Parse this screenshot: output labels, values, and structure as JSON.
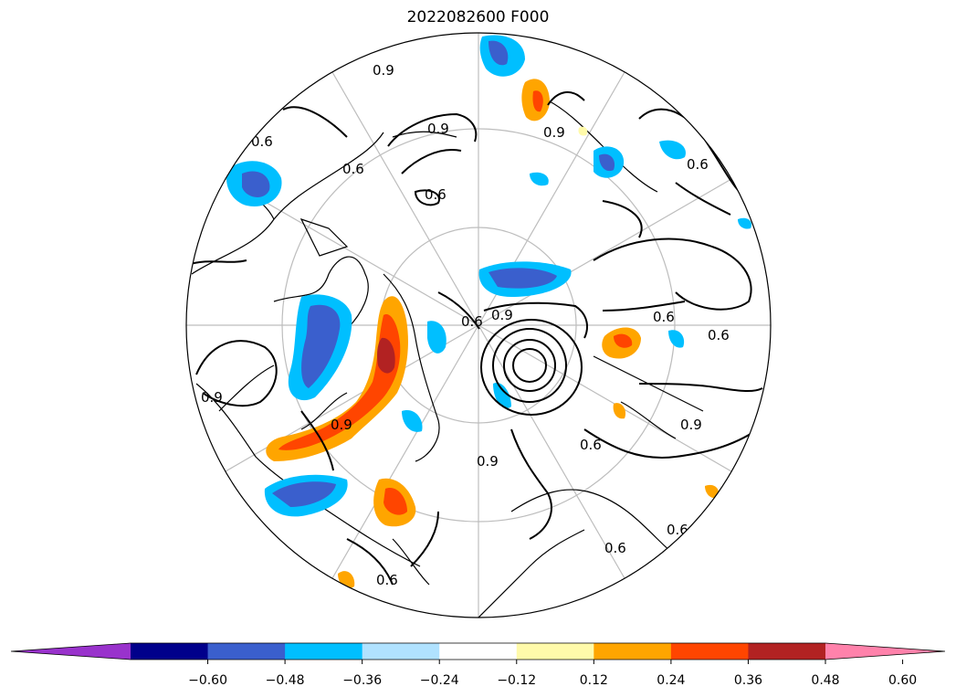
{
  "title": "2022082600 F000",
  "map": {
    "projection": "north-polar-stereographic",
    "contour_labels": [
      "0.9",
      "0.9",
      "0.6",
      "0.6",
      "0.6",
      "0.6",
      "0.9",
      "0.9",
      "0.6",
      "0.9",
      "0.6",
      "0.6",
      "0.9",
      "0.6",
      "0.9",
      "0.9",
      "0.6",
      "0.6",
      "0.6"
    ]
  },
  "colorbar": {
    "extend": "both",
    "colors": [
      "#9932cc",
      "#00008b",
      "#3a5fcd",
      "#00bfff",
      "#b0e2ff",
      "#ffffff",
      "#fffaaa",
      "#ffa500",
      "#ff4500",
      "#b22222",
      "#ff82ab"
    ],
    "tick_labels": [
      "−0.60",
      "−0.48",
      "−0.36",
      "−0.24",
      "−0.12",
      "0.12",
      "0.24",
      "0.36",
      "0.48",
      "0.60"
    ]
  }
}
